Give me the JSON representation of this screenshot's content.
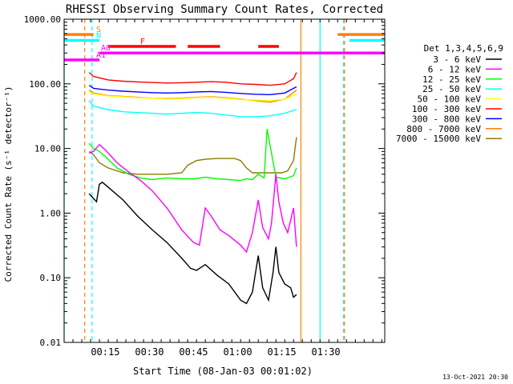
{
  "chart_data": {
    "type": "line",
    "title": "RHESSI Observing Summary Count Rates, Corrected",
    "xlabel": "Start Time (08-Jan-03 00:01:02)",
    "ylabel": "Corrected Count Rate (s⁻¹ detector⁻¹)",
    "yscale": "log",
    "ylim": [
      0.01,
      1000
    ],
    "xlim_minutes": [
      0,
      109
    ],
    "x_tick_labels": [
      {
        "min": 14,
        "label": "00:15"
      },
      {
        "min": 29,
        "label": "00:30"
      },
      {
        "min": 44,
        "label": "00:45"
      },
      {
        "min": 59,
        "label": "01:00"
      },
      {
        "min": 74,
        "label": "01:15"
      },
      {
        "min": 89,
        "label": "01:30"
      }
    ],
    "y_tick_labels": [
      "0.01",
      "0.10",
      "1.00",
      "10.00",
      "100.00",
      "1000.00"
    ],
    "detectors_label": "Det 1,3,4,5,6,9",
    "series": [
      {
        "name": "3 - 6 keV",
        "color": "#000000",
        "x": [
          8.5,
          11,
          12,
          13,
          16,
          20,
          25,
          30,
          35,
          40,
          43,
          45,
          48,
          52,
          56,
          60,
          62,
          64,
          66,
          67.5,
          69.5,
          71,
          72,
          73,
          75,
          77,
          78,
          79
        ],
        "y": [
          2.0,
          1.5,
          2.8,
          3.0,
          2.3,
          1.6,
          0.9,
          0.55,
          0.35,
          0.2,
          0.14,
          0.13,
          0.16,
          0.11,
          0.08,
          0.045,
          0.04,
          0.06,
          0.22,
          0.07,
          0.045,
          0.12,
          0.3,
          0.12,
          0.08,
          0.07,
          0.05,
          0.055
        ]
      },
      {
        "name": "6 - 12 keV",
        "color": "#ff00ff",
        "x": [
          8.5,
          10,
          12,
          14,
          18,
          22,
          26,
          30,
          35,
          40,
          44,
          46,
          48,
          50,
          53,
          56,
          58,
          60,
          62,
          64,
          66,
          67.5,
          69.5,
          70.5,
          72,
          73,
          74.5,
          76,
          78,
          79
        ],
        "y": [
          8.5,
          9.0,
          11.5,
          9.5,
          6.0,
          4.3,
          3.2,
          2.2,
          1.2,
          0.55,
          0.35,
          0.32,
          1.2,
          0.9,
          0.55,
          0.45,
          0.38,
          0.32,
          0.25,
          0.5,
          1.6,
          0.6,
          0.4,
          0.7,
          4.0,
          1.5,
          0.7,
          0.5,
          1.2,
          0.3
        ]
      },
      {
        "name": "12 - 25 keV",
        "color": "#00ff00",
        "x": [
          8.5,
          10,
          12,
          14,
          18,
          22,
          26,
          30,
          35,
          40,
          44,
          48,
          52,
          56,
          60,
          62,
          64,
          66,
          68,
          69,
          72,
          75,
          78,
          79
        ],
        "y": [
          12,
          10,
          9,
          7.5,
          5.0,
          4.0,
          3.5,
          3.3,
          3.5,
          3.4,
          3.4,
          3.6,
          3.4,
          3.3,
          3.2,
          3.4,
          3.3,
          4.0,
          3.5,
          20,
          3.6,
          3.4,
          3.8,
          5.0
        ]
      },
      {
        "name": "25 - 50 keV",
        "color": "#00ffff",
        "x": [
          8.5,
          10,
          15,
          20,
          25,
          30,
          35,
          40,
          45,
          50,
          55,
          60,
          65,
          70,
          75,
          79
        ],
        "y": [
          55,
          45,
          40,
          37,
          36,
          35,
          34,
          35,
          36,
          35,
          33,
          31,
          31,
          32,
          35,
          40
        ]
      },
      {
        "name": "50 - 100 keV",
        "color": "#ffff00",
        "x": [
          8.5,
          10,
          15,
          20,
          25,
          30,
          35,
          40,
          45,
          50,
          55,
          60,
          65,
          70,
          75,
          79
        ],
        "y": [
          75,
          70,
          65,
          63,
          61,
          60,
          58,
          59,
          61,
          62,
          60,
          57,
          56,
          55,
          58,
          70
        ]
      },
      {
        "name": "100 - 300 keV",
        "color": "#ff0000",
        "x": [
          8.5,
          10,
          15,
          20,
          25,
          30,
          35,
          40,
          45,
          50,
          55,
          60,
          65,
          70,
          75,
          78,
          79
        ],
        "y": [
          150,
          130,
          115,
          110,
          107,
          105,
          103,
          104,
          106,
          108,
          106,
          100,
          98,
          95,
          100,
          120,
          150
        ]
      },
      {
        "name": "300 - 800 keV",
        "color": "#0000ff",
        "x": [
          8.5,
          10,
          15,
          20,
          25,
          30,
          35,
          40,
          45,
          50,
          55,
          60,
          65,
          70,
          75,
          79
        ],
        "y": [
          95,
          85,
          80,
          77,
          75,
          73,
          72,
          73,
          75,
          76,
          74,
          71,
          69,
          68,
          72,
          90
        ]
      },
      {
        "name": "800 - 7000 keV",
        "color": "#ff8000",
        "x": [
          8.5,
          10,
          15,
          20,
          25,
          30,
          35,
          40,
          45,
          50,
          55,
          60,
          65,
          70,
          75,
          79
        ],
        "y": [
          80,
          72,
          66,
          64,
          62,
          60,
          59,
          60,
          62,
          63,
          61,
          58,
          55,
          52,
          58,
          80
        ]
      },
      {
        "name": "7000 - 15000 keV",
        "color": "#8b7d00",
        "x": [
          8.5,
          10,
          12,
          15,
          20,
          25,
          30,
          35,
          40,
          42,
          45,
          48,
          52,
          55,
          58,
          60,
          62,
          64,
          66,
          70,
          74,
          76,
          78,
          79
        ],
        "y": [
          9,
          8,
          6,
          5,
          4.2,
          4,
          4,
          4,
          4.2,
          5.5,
          6.5,
          6.8,
          7.0,
          7.0,
          7.0,
          6.5,
          5.0,
          4.2,
          4.2,
          4.2,
          4.2,
          4.5,
          6.5,
          15
        ]
      }
    ],
    "flag_bars": [
      {
        "label": "S",
        "color": "#ff8000",
        "segments": [
          [
            0,
            10
          ],
          [
            93,
            109
          ]
        ],
        "level": 580
      },
      {
        "label": "N",
        "color": "#00ffff",
        "segments": [
          [
            0,
            12
          ],
          [
            97,
            109
          ]
        ],
        "level": 470
      },
      {
        "label": "F",
        "color": "#ff0000",
        "segments": [
          [
            15,
            38
          ],
          [
            42,
            53
          ],
          [
            66,
            73
          ]
        ],
        "level": 380
      },
      {
        "label": "A0",
        "color": "#ff00ff",
        "segments": [
          [
            12,
            109
          ]
        ],
        "level": 300
      },
      {
        "label": "A1",
        "color": "#ff00ff",
        "segments": [
          [
            0,
            12
          ]
        ],
        "level": 235
      }
    ],
    "vertical_markers": [
      {
        "min": 0,
        "color": "#00ffff",
        "style": "solid"
      },
      {
        "min": 7,
        "color": "#ff8000",
        "style": "dashed"
      },
      {
        "min": 9.5,
        "color": "#00ffff",
        "style": "dashed"
      },
      {
        "min": 80.5,
        "color": "#ff8000",
        "style": "solid"
      },
      {
        "min": 87,
        "color": "#00ffff",
        "style": "solid"
      },
      {
        "min": 95,
        "color": "#00ffff",
        "style": "dashed"
      },
      {
        "min": 95.3,
        "color": "#ff8000",
        "style": "dashed"
      }
    ]
  },
  "footer_timestamp": "13-Oct-2021 20:30"
}
